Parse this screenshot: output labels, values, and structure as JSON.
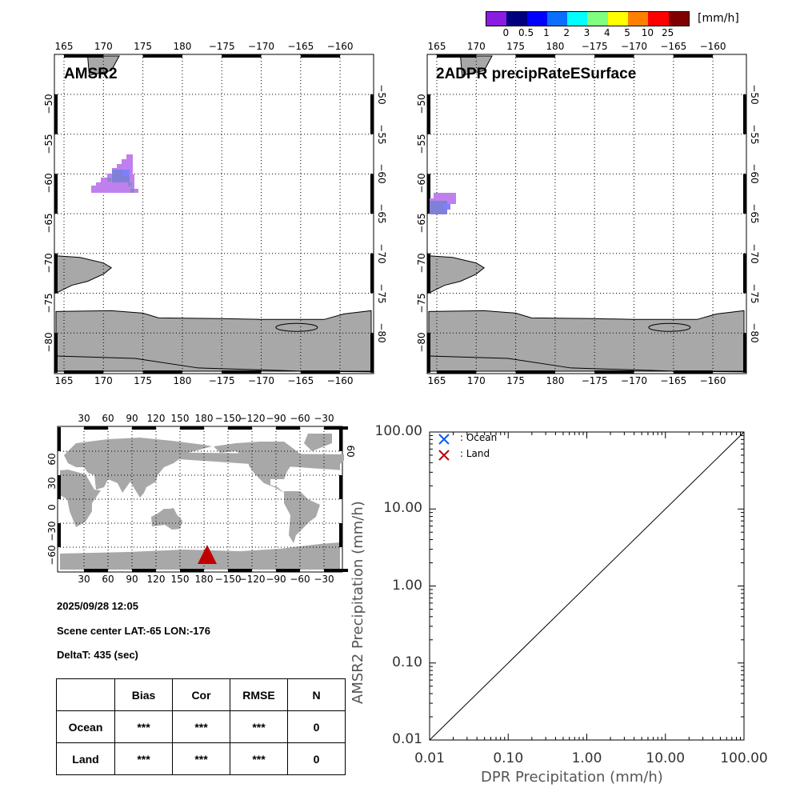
{
  "colorbar": {
    "colors": [
      "#8a1ee0",
      "#00007f",
      "#0000ff",
      "#0a6fff",
      "#00ffff",
      "#7fff7f",
      "#ffff00",
      "#ff8000",
      "#ff0000",
      "#800000"
    ],
    "labels": [
      "0",
      "0.5",
      "1",
      "2",
      "3",
      "4",
      "5",
      "10",
      "25"
    ],
    "unit": "[mm/h]"
  },
  "maps": [
    {
      "title": "AMSR2"
    },
    {
      "title": "2ADPR precipRateESurface"
    }
  ],
  "map_lon_labels": [
    "165",
    "170",
    "175",
    "180",
    "−175",
    "−170",
    "−165",
    "−160"
  ],
  "map_lat_labels": [
    "−50",
    "−55",
    "−60",
    "−65",
    "−70",
    "−75",
    "−80"
  ],
  "world": {
    "lon_labels": [
      "30",
      "60",
      "90",
      "120",
      "150",
      "180",
      "−150",
      "−120",
      "−90",
      "−60",
      "−30"
    ],
    "lat_labels": [
      "60",
      "30",
      "0",
      "−30",
      "−60"
    ],
    "right_lat_label": "60",
    "marker_color": "#c00000",
    "marker_lon": -176,
    "marker_lat": -65
  },
  "info": {
    "datetime": "2025/09/28 12:05",
    "scene_center": "Scene center LAT:-65   LON:-176",
    "delta_t": "DeltaT:  435 (sec)"
  },
  "stats": {
    "headers": [
      "",
      "Bias",
      "Cor",
      "RMSE",
      "N"
    ],
    "rows": [
      {
        "label": "Ocean",
        "bias": "***",
        "cor": "***",
        "rmse": "***",
        "n": "0"
      },
      {
        "label": "Land",
        "bias": "***",
        "cor": "***",
        "rmse": "***",
        "n": "0"
      }
    ]
  },
  "chart_data": {
    "type": "scatter",
    "xlabel": "DPR Precipitation (mm/h)",
    "ylabel": "AMSR2 Precipitation (mm/h)",
    "xscale": "log",
    "yscale": "log",
    "xlim": [
      0.01,
      100
    ],
    "ylim": [
      0.01,
      100
    ],
    "xtick_labels": [
      "0.01",
      "0.10",
      "1.00",
      "10.00",
      "100.00"
    ],
    "ytick_labels": [
      "0.01",
      "0.10",
      "1.00",
      "10.00",
      "100.00"
    ],
    "legend": [
      {
        "label": ": Ocean",
        "color": "#0a5aff",
        "marker": "x"
      },
      {
        "label": ": Land",
        "color": "#c00000",
        "marker": "x"
      }
    ],
    "legend_position": "top-left",
    "series": [
      {
        "name": "Ocean",
        "points": []
      },
      {
        "name": "Land",
        "points": []
      }
    ],
    "reference_line": "1:1"
  }
}
